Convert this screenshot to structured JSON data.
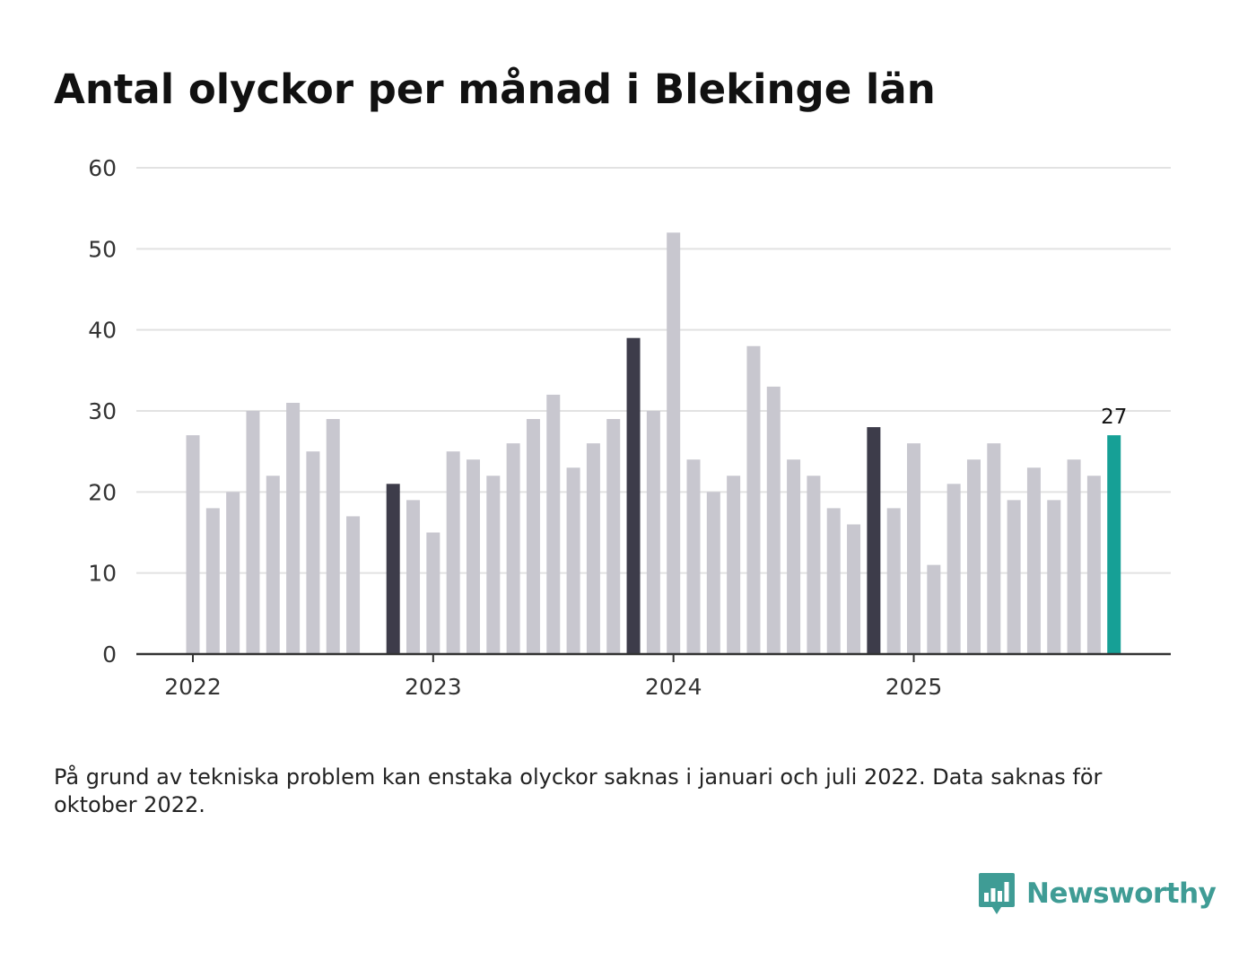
{
  "title": "Antal olyckor per månad i Blekinge län",
  "footnote": "På grund av tekniska problem kan enstaka olyckor saknas i januari och juli 2022. Data saknas för oktober 2022.",
  "brand": {
    "name": "Newsworthy",
    "icon": "bar-chart-speech-bubble-icon",
    "color": "#3f9c95"
  },
  "colors": {
    "bar_default": "#c8c7cf",
    "bar_highlight_month": "#3d3c4a",
    "bar_latest": "#16a096",
    "gridline": "#e2e2e2",
    "axis": "#333333"
  },
  "chart_data": {
    "type": "bar",
    "title": "Antal olyckor per månad i Blekinge län",
    "xlabel": "",
    "ylabel": "",
    "ylim": [
      0,
      60
    ],
    "yticks": [
      0,
      10,
      20,
      30,
      40,
      50,
      60
    ],
    "grid": true,
    "x_tick_labels": [
      {
        "label": "2022",
        "month": "2022-01"
      },
      {
        "label": "2023",
        "month": "2023-01"
      },
      {
        "label": "2024",
        "month": "2024-01"
      },
      {
        "label": "2025",
        "month": "2025-01"
      }
    ],
    "categories": [
      "2022-01",
      "2022-02",
      "2022-03",
      "2022-04",
      "2022-05",
      "2022-06",
      "2022-07",
      "2022-08",
      "2022-09",
      "2022-10",
      "2022-11",
      "2022-12",
      "2023-01",
      "2023-02",
      "2023-03",
      "2023-04",
      "2023-05",
      "2023-06",
      "2023-07",
      "2023-08",
      "2023-09",
      "2023-10",
      "2023-11",
      "2023-12",
      "2024-01",
      "2024-02",
      "2024-03",
      "2024-04",
      "2024-05",
      "2024-06",
      "2024-07",
      "2024-08",
      "2024-09",
      "2024-10",
      "2024-11",
      "2024-12",
      "2025-01",
      "2025-02",
      "2025-03",
      "2025-04",
      "2025-05",
      "2025-06",
      "2025-07",
      "2025-08",
      "2025-09",
      "2025-10",
      "2025-11"
    ],
    "values": [
      27,
      18,
      20,
      30,
      22,
      31,
      25,
      29,
      17,
      null,
      21,
      19,
      15,
      25,
      24,
      22,
      26,
      29,
      32,
      23,
      26,
      29,
      39,
      30,
      52,
      24,
      20,
      22,
      38,
      33,
      24,
      22,
      18,
      16,
      28,
      18,
      26,
      11,
      21,
      24,
      26,
      19,
      23,
      19,
      24,
      22,
      27
    ],
    "highlighted": [
      "2022-11",
      "2023-11",
      "2024-11"
    ],
    "latest": "2025-11",
    "data_labels": [
      {
        "month": "2025-11",
        "text": "27"
      }
    ]
  }
}
